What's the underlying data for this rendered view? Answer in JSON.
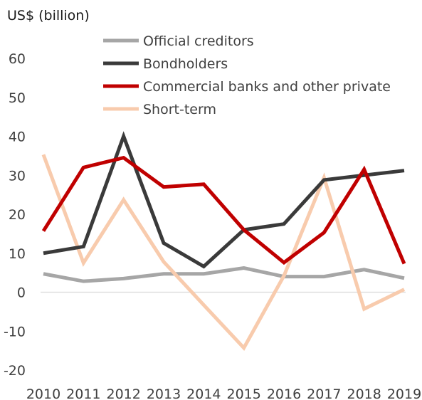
{
  "chart_data": {
    "type": "line",
    "ylabel": "US$ (billion)",
    "ylim": [
      -20,
      60
    ],
    "ytick_step": 10,
    "grid": false,
    "legend_position": "top",
    "x": [
      "2010",
      "2011",
      "2012",
      "2013",
      "2014",
      "2015",
      "2016",
      "2017",
      "2018",
      "2019"
    ],
    "series": [
      {
        "name": "Official creditors",
        "color": "#a6a6a6",
        "values": [
          4.7,
          2.8,
          3.5,
          4.7,
          4.7,
          6.2,
          4.0,
          4.0,
          5.8,
          3.6
        ]
      },
      {
        "name": "Bondholders",
        "color": "#3a3a3a",
        "values": [
          10.0,
          11.7,
          40.0,
          12.6,
          6.6,
          16.0,
          17.5,
          28.8,
          30.0,
          31.2
        ]
      },
      {
        "name": "Commercial banks and other private",
        "color": "#c00000",
        "values": [
          15.7,
          32.0,
          34.5,
          27.0,
          27.7,
          16.0,
          7.6,
          15.3,
          31.5,
          7.3
        ]
      },
      {
        "name": "Short-term",
        "color": "#f8cbad",
        "values": [
          35.3,
          7.5,
          23.7,
          7.8,
          -3.3,
          -14.3,
          4.2,
          29.4,
          -4.3,
          0.7
        ]
      }
    ]
  }
}
